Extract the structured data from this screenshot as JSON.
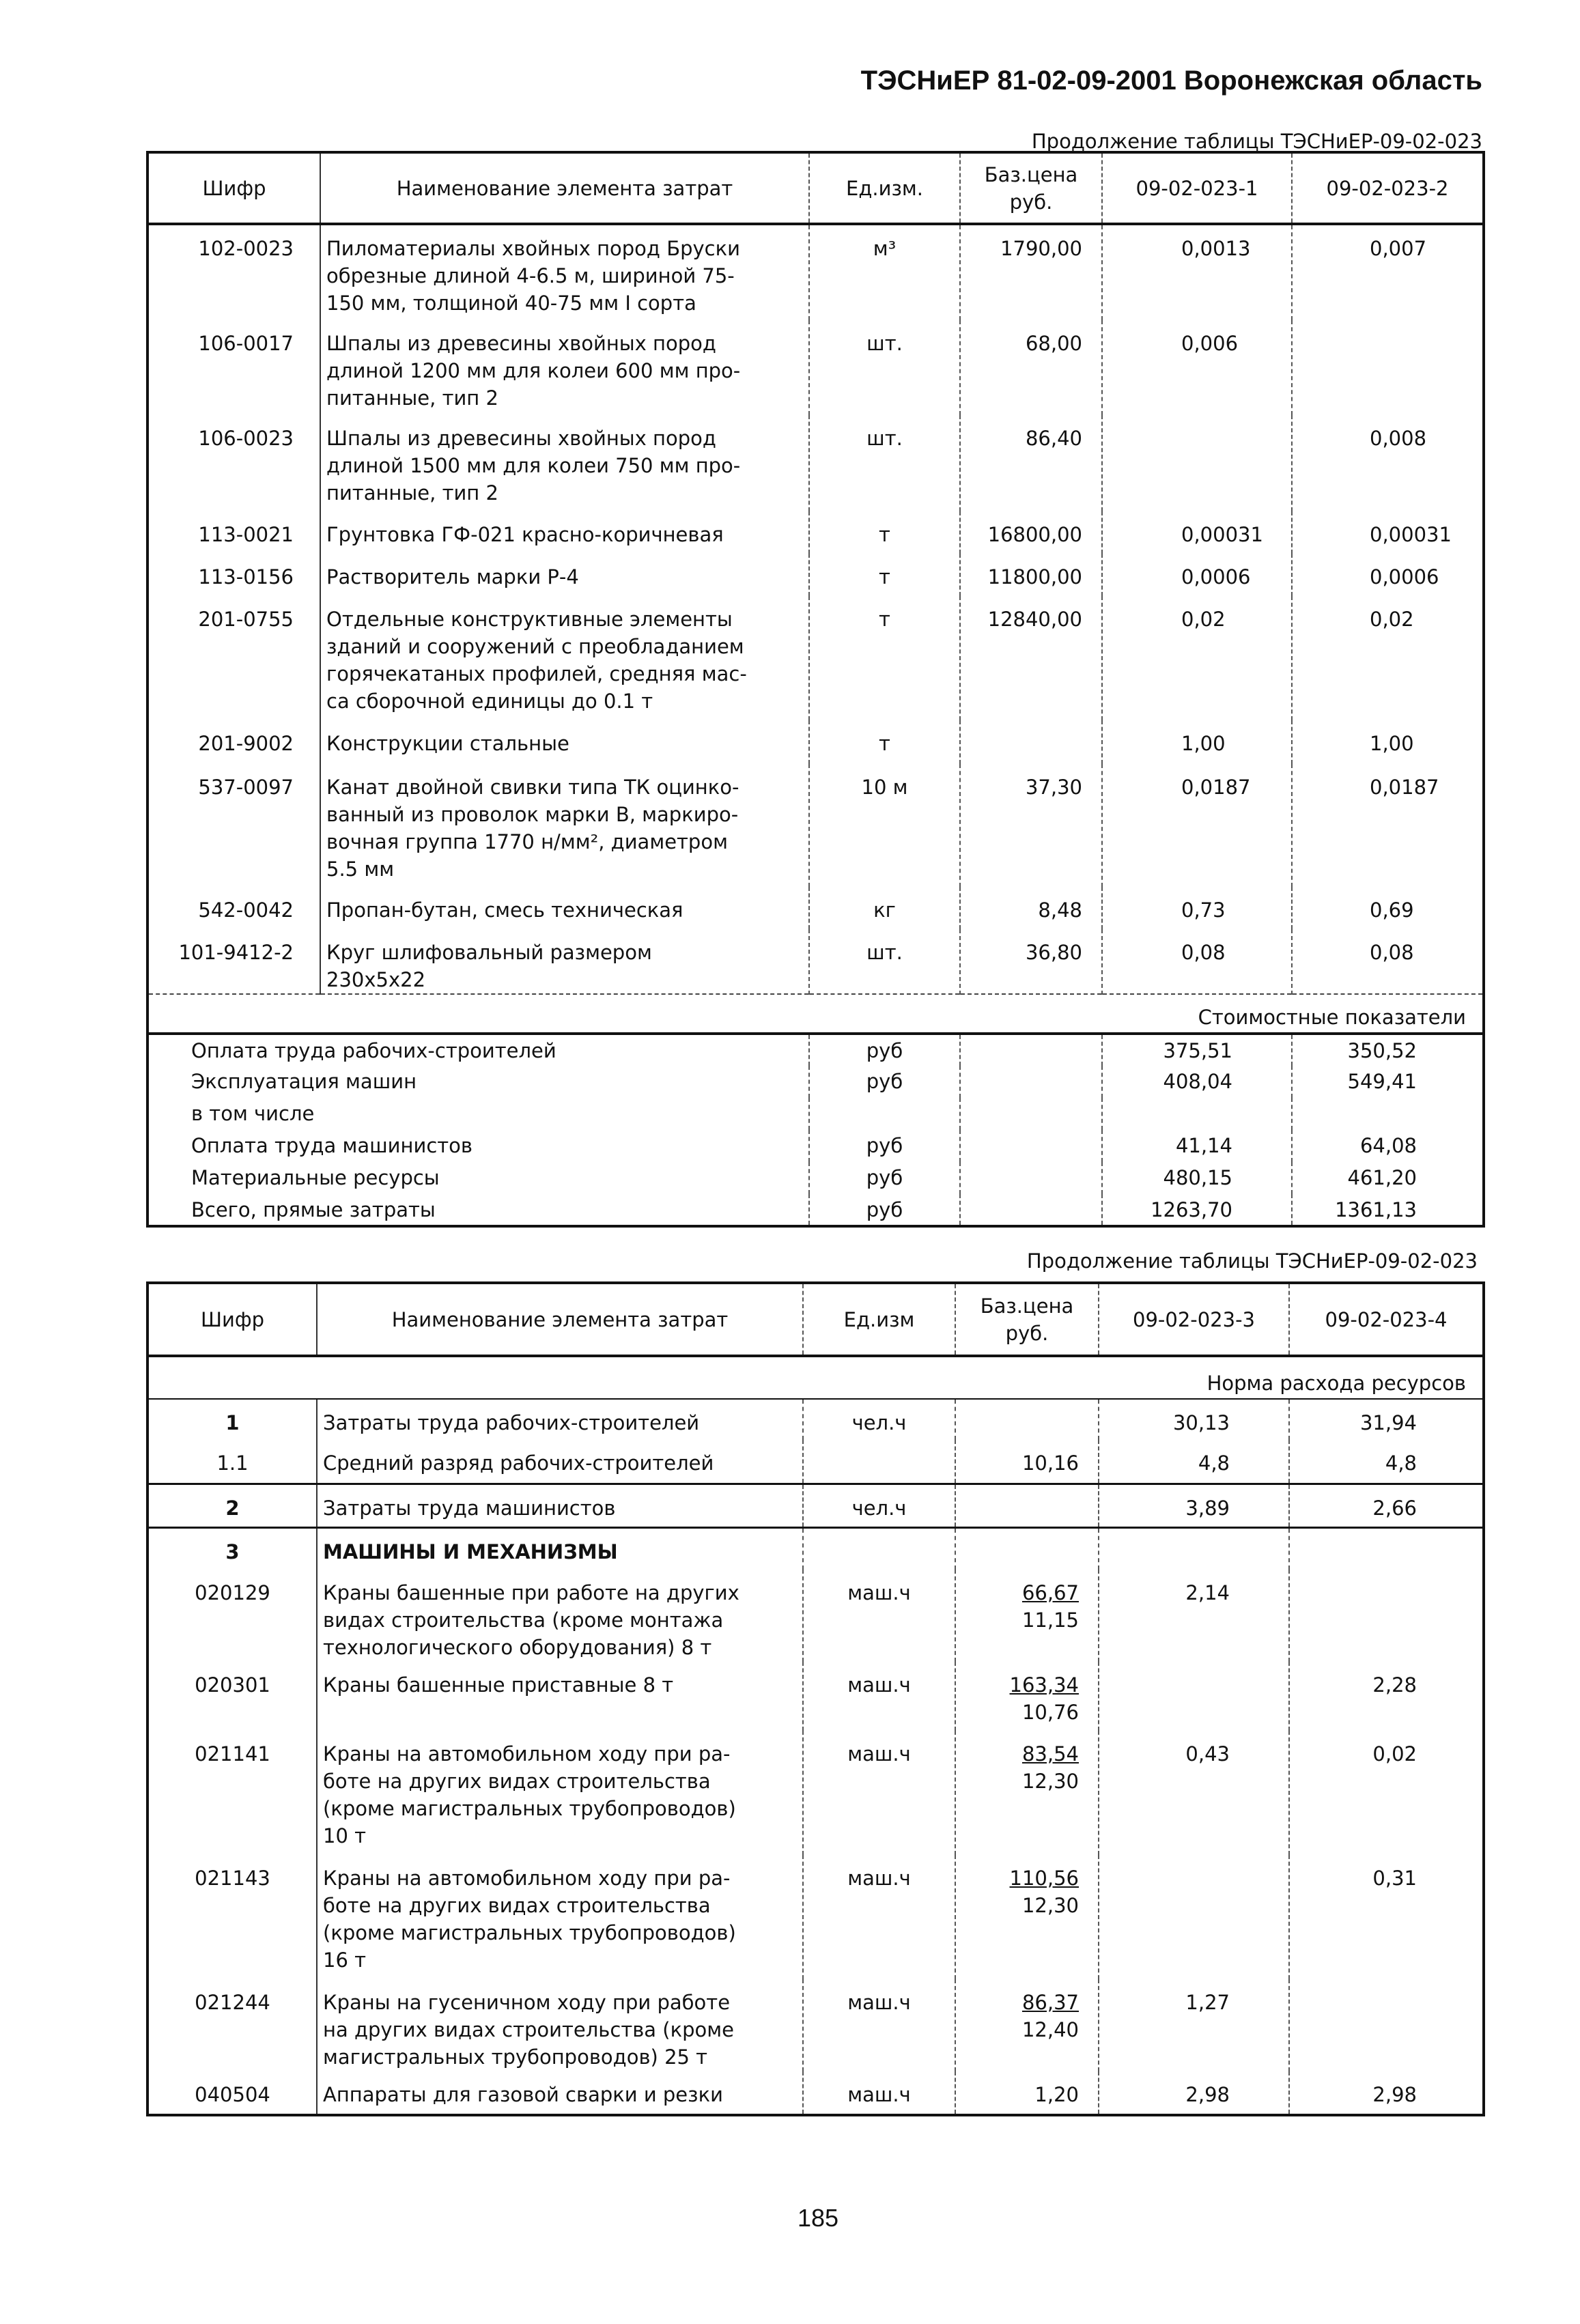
{
  "header": {
    "title": "ТЭСНиЕР 81-02-09-2001 Воронежская область"
  },
  "table1": {
    "caption": "Продолжение таблицы ТЭСНиЕР-09-02-023",
    "columns": [
      "Шифр",
      "Наименование элемента затрат",
      "Ед.изм.",
      "Баз.цена\nруб.",
      "09-02-023-1",
      "09-02-023-2"
    ],
    "rows": [
      {
        "code": "102-0023",
        "name": "Пиломатериалы хвойных пород  Бруски\nобрезные длиной 4-6.5 м, шириной 75-\n150 мм, толщиной 40-75 мм I сорта",
        "unit": "м³",
        "price": "1790,00",
        "v1": "0,0013",
        "v2": "0,007"
      },
      {
        "code": "106-0017",
        "name": "Шпалы из древесины хвойных пород\nдлиной 1200 мм для колеи 600 мм про-\nпитанные, тип 2",
        "unit": "шт.",
        "price": "68,00",
        "v1": "0,006",
        "v2": ""
      },
      {
        "code": "106-0023",
        "name": "Шпалы из древесины хвойных пород\nдлиной 1500 мм для колеи 750 мм про-\nпитанные, тип 2",
        "unit": "шт.",
        "price": "86,40",
        "v1": "",
        "v2": "0,008"
      },
      {
        "code": "113-0021",
        "name": "Грунтовка ГФ-021 красно-коричневая",
        "unit": "т",
        "price": "16800,00",
        "v1": "0,00031",
        "v2": "0,00031"
      },
      {
        "code": "113-0156",
        "name": "Растворитель марки Р-4",
        "unit": "т",
        "price": "11800,00",
        "v1": "0,0006",
        "v2": "0,0006"
      },
      {
        "code": "201-0755",
        "name": "Отдельные конструктивные элементы\nзданий и сооружений с преобладанием\nгорячекатаных профилей, средняя мас-\nса сборочной единицы до 0.1 т",
        "unit": "т",
        "price": "12840,00",
        "v1": "0,02",
        "v2": "0,02"
      },
      {
        "code": "201-9002",
        "name": "Конструкции стальные",
        "unit": "т",
        "price": "",
        "v1": "1,00",
        "v2": "1,00"
      },
      {
        "code": "537-0097",
        "name": "Канат двойной свивки типа ТК оцинко-\nванный из проволок марки В, маркиро-\nвочная группа 1770 н/мм², диаметром\n5.5 мм",
        "unit": "10 м",
        "price": "37,30",
        "v1": "0,0187",
        "v2": "0,0187"
      },
      {
        "code": "542-0042",
        "name": "Пропан-бутан, смесь техническая",
        "unit": "кг",
        "price": "8,48",
        "v1": "0,73",
        "v2": "0,69"
      },
      {
        "code": "101-9412-2",
        "name": "Круг шлифовальный размером\n230х5х22",
        "unit": "шт.",
        "price": "36,80",
        "v1": "0,08",
        "v2": "0,08"
      }
    ],
    "section_label": "Стоимостные показатели",
    "summary": [
      {
        "label": "Оплата труда рабочих-строителей",
        "unit": "руб",
        "v1": "375,51",
        "v2": "350,52",
        "bold": true
      },
      {
        "label": "Эксплуатация машин",
        "unit": "руб",
        "v1": "408,04",
        "v2": "549,41",
        "bold": true
      },
      {
        "label": "в том числе",
        "unit": "",
        "v1": "",
        "v2": "",
        "bold": false
      },
      {
        "label": "Оплата труда машинистов",
        "unit": "руб",
        "v1": "41,14",
        "v2": "64,08",
        "bold": false
      },
      {
        "label": "Материальные ресурсы",
        "unit": "руб",
        "v1": "480,15",
        "v2": "461,20",
        "bold": true
      },
      {
        "label": "Всего, прямые затраты",
        "unit": "руб",
        "v1": "1263,70",
        "v2": "1361,13",
        "bold": true
      }
    ]
  },
  "table2": {
    "caption": "Продолжение таблицы ТЭСНиЕР-09-02-023",
    "columns": [
      "Шифр",
      "Наименование элемента затрат",
      "Ед.изм",
      "Баз.цена\nруб.",
      "09-02-023-3",
      "09-02-023-4"
    ],
    "section_label": "Норма расхода ресурсов",
    "rows": [
      {
        "code": "1",
        "name": "Затраты труда рабочих-строителей",
        "unit": "чел.ч",
        "price": "",
        "price2": "",
        "v1": "30,13",
        "v2": "31,94",
        "bold_code": true
      },
      {
        "code": "1.1",
        "name": "Средний разряд рабочих-строителей",
        "unit": "",
        "price": "10,16",
        "price2": "",
        "v1": "4,8",
        "v2": "4,8"
      },
      {
        "code": "2",
        "name": "Затраты труда машинистов",
        "unit": "чел.ч",
        "price": "",
        "price2": "",
        "v1": "3,89",
        "v2": "2,66",
        "bold_code": true
      },
      {
        "code": "3",
        "name": "МАШИНЫ И МЕХАНИЗМЫ",
        "unit": "",
        "price": "",
        "price2": "",
        "v1": "",
        "v2": "",
        "bold_code": true,
        "bold_name": true
      },
      {
        "code": "020129",
        "name": "Краны башенные при работе на других\nвидах строительства (кроме монтажа\nтехнологического оборудования) 8 т",
        "unit": "маш.ч",
        "price": "66,67",
        "price2": "11,15",
        "v1": "2,14",
        "v2": ""
      },
      {
        "code": "020301",
        "name": "Краны башенные приставные 8 т",
        "unit": "маш.ч",
        "price": "163,34",
        "price2": "10,76",
        "v1": "",
        "v2": "2,28"
      },
      {
        "code": "021141",
        "name": "Краны на автомобильном ходу при ра-\nботе на других видах строительства\n(кроме магистральных трубопроводов)\n10 т",
        "unit": "маш.ч",
        "price": "83,54",
        "price2": "12,30",
        "v1": "0,43",
        "v2": "0,02"
      },
      {
        "code": "021143",
        "name": "Краны на автомобильном ходу при ра-\nботе на других видах строительства\n(кроме магистральных трубопроводов)\n16 т",
        "unit": "маш.ч",
        "price": "110,56",
        "price2": "12,30",
        "v1": "",
        "v2": "0,31"
      },
      {
        "code": "021244",
        "name": "Краны на гусеничном ходу при работе\nна других видах строительства (кроме\nмагистральных трубопроводов) 25 т",
        "unit": "маш.ч",
        "price": "86,37",
        "price2": "12,40",
        "v1": "1,27",
        "v2": ""
      },
      {
        "code": "040504",
        "name": "Аппараты для газовой сварки и резки",
        "unit": "маш.ч",
        "price": "1,20",
        "price2": "",
        "v1": "2,98",
        "v2": "2,98"
      }
    ]
  },
  "footer": {
    "page_number": "185"
  }
}
